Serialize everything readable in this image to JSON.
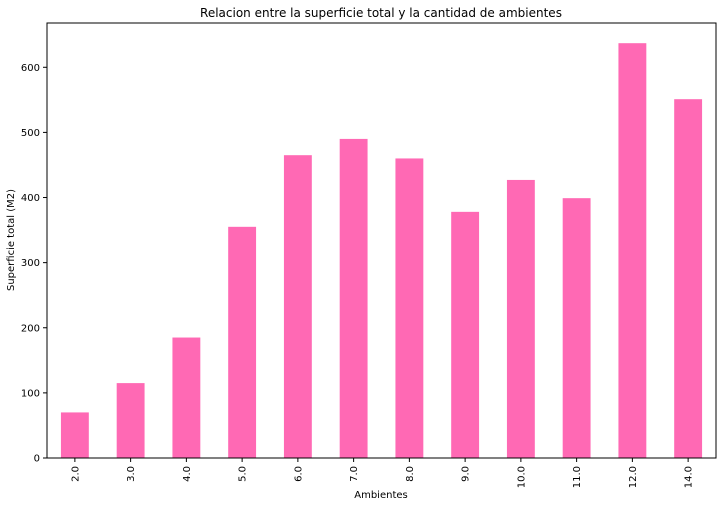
{
  "chart_data": {
    "type": "bar",
    "title": "Relacion entre la superficie total y la cantidad de ambientes",
    "xlabel": "Ambientes",
    "ylabel": "Superficie total (M2)",
    "categories": [
      "2.0",
      "3.0",
      "4.0",
      "5.0",
      "6.0",
      "7.0",
      "8.0",
      "9.0",
      "10.0",
      "11.0",
      "12.0",
      "14.0"
    ],
    "values": [
      70,
      115,
      185,
      355,
      465,
      490,
      460,
      378,
      427,
      399,
      637,
      551
    ],
    "ylim": [
      0,
      668
    ],
    "yticks": [
      "0",
      "100",
      "200",
      "300",
      "400",
      "500",
      "600"
    ],
    "bar_color": "#ff69b4",
    "grid": false,
    "legend": "none"
  }
}
